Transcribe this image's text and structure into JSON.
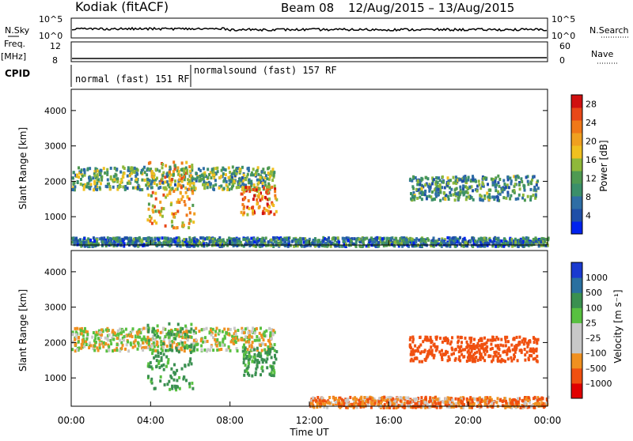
{
  "header": {
    "station": "Kodiak (fitACF)",
    "beam": "Beam 08",
    "date_range": "12/Aug/2015 – 13/Aug/2015"
  },
  "summary_panels": {
    "nsky": {
      "label": "N.Sky",
      "ticks": [
        "10^5",
        "10^0"
      ]
    },
    "nsearch": {
      "label": "N.Search",
      "ticks": [
        "10^5",
        "10^0"
      ]
    },
    "freq": {
      "label_line1": "Freq.",
      "label_line2": "[MHz]",
      "ticks": [
        "12",
        "8"
      ]
    },
    "nave": {
      "label": "Nave",
      "ticks": [
        "60",
        "0"
      ]
    },
    "cpid": {
      "label": "CPID",
      "segments": [
        "normal (fast) 151 RF",
        "normalsound (fast) 157 RF"
      ]
    }
  },
  "x_axis": {
    "label": "Time UT",
    "ticks": [
      "00:00",
      "04:00",
      "08:00",
      "12:00",
      "16:00",
      "20:00",
      "00:00"
    ]
  },
  "colors": {
    "power_scale": [
      "#0022ee",
      "#1f4fa8",
      "#2f6ea5",
      "#3b8f6a",
      "#4f9a52",
      "#8fb83a",
      "#f0c020",
      "#f0a020",
      "#f07818",
      "#e84818",
      "#d01010"
    ],
    "velocity_scale": [
      "#e00000",
      "#f05010",
      "#f09020",
      "#c8c8c8",
      "#c8c8c8",
      "#58c040",
      "#3a9050",
      "#2a70a0",
      "#1a3ad0"
    ],
    "ground_scatter": "#c8c8c8"
  },
  "chart_data": [
    {
      "type": "heatmap",
      "panel": "power",
      "ylabel": "Slant Range [km]",
      "y_ticks": [
        "1000",
        "2000",
        "3000",
        "4000"
      ],
      "ylim": [
        200,
        4600
      ],
      "x_range_hours": [
        0,
        24
      ],
      "colorbar": {
        "label": "Power [dB]",
        "ticks": [
          "4",
          "8",
          "12",
          "16",
          "20",
          "24",
          "28"
        ],
        "range": [
          0,
          30
        ]
      },
      "regions": [
        {
          "t0": 0.0,
          "t1": 10.2,
          "r0": 1800,
          "r1": 2450,
          "value": 12
        },
        {
          "t0": 3.8,
          "t1": 6.2,
          "r0": 700,
          "r1": 2600,
          "value": 20
        },
        {
          "t0": 8.5,
          "t1": 10.3,
          "r0": 1100,
          "r1": 1900,
          "value": 22
        },
        {
          "t0": 0.0,
          "t1": 24.0,
          "r0": 200,
          "r1": 450,
          "value": 8
        },
        {
          "t0": 17.0,
          "t1": 23.5,
          "r0": 1500,
          "r1": 2200,
          "value": 10
        }
      ]
    },
    {
      "type": "heatmap",
      "panel": "velocity",
      "ylabel": "Slant Range [km]",
      "y_ticks": [
        "1000",
        "2000",
        "3000",
        "4000"
      ],
      "ylim": [
        200,
        4600
      ],
      "x_range_hours": [
        0,
        24
      ],
      "colorbar": {
        "label": "Velocity [m s⁻¹]",
        "ticks": [
          "1000",
          "500",
          "100",
          "25",
          "–25",
          "–100",
          "–500",
          "–1000"
        ],
        "range": [
          -1000,
          1000
        ]
      },
      "regions": [
        {
          "t0": 0.0,
          "t1": 10.2,
          "r0": 1800,
          "r1": 2450,
          "value": 0
        },
        {
          "t0": 3.8,
          "t1": 6.2,
          "r0": 700,
          "r1": 2600,
          "value": 150
        },
        {
          "t0": 8.5,
          "t1": 10.3,
          "r0": 1100,
          "r1": 1900,
          "value": 150
        },
        {
          "t0": 12.0,
          "t1": 24.0,
          "r0": 200,
          "r1": 500,
          "value": -80
        },
        {
          "t0": 17.0,
          "t1": 23.5,
          "r0": 1500,
          "r1": 2200,
          "value": -300
        }
      ]
    }
  ]
}
